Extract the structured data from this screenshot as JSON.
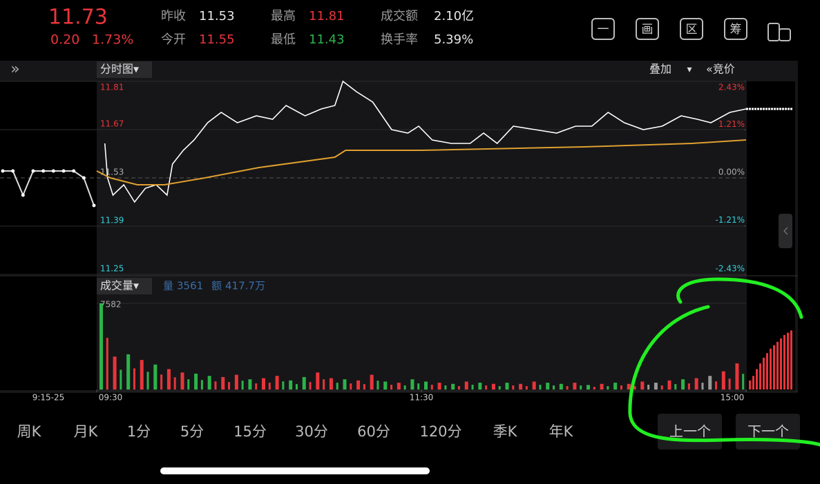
{
  "header": {
    "price": "11.73",
    "change": "0.20",
    "change_pct": "1.73%",
    "stats": [
      {
        "label": "昨收",
        "value": "11.53",
        "color": "#e8e8e8"
      },
      {
        "label": "今开",
        "value": "11.55",
        "color": "#e8353b"
      },
      {
        "label": "最高",
        "value": "11.81",
        "color": "#e8353b"
      },
      {
        "label": "最低",
        "value": "11.43",
        "color": "#2db34a"
      },
      {
        "label": "成交额",
        "value": "2.10亿",
        "color": "#e8e8e8"
      },
      {
        "label": "换手率",
        "value": "5.39%",
        "color": "#e8e8e8"
      }
    ],
    "icons": [
      "一",
      "画",
      "区",
      "筹"
    ]
  },
  "toolbar": {
    "expand": "»",
    "mode": "分时图▾",
    "overlay": "叠加",
    "overlay_arrow": "▾",
    "auction": "«竞价"
  },
  "chart_data": {
    "type": "line",
    "auction_label": "9:15-25",
    "xlim": [
      0,
      240
    ],
    "xticks": [
      {
        "value": 0,
        "label": "09:30"
      },
      {
        "value": 120,
        "label": "11:30"
      },
      {
        "value": 240,
        "label": "15:00"
      }
    ],
    "ylim": [
      11.25,
      11.81
    ],
    "yticks": [
      11.81,
      11.67,
      11.53,
      11.39,
      11.25
    ],
    "y2lim": [
      -2.43,
      2.43
    ],
    "y2ticks": [
      {
        "value": 2.43,
        "label": "2.43%"
      },
      {
        "value": 1.21,
        "label": "1.21%"
      },
      {
        "value": 0,
        "label": "0.00%"
      },
      {
        "value": -1.21,
        "label": "-1.21%"
      },
      {
        "value": -2.43,
        "label": "-2.43%"
      }
    ],
    "x": [
      3,
      4,
      6,
      10,
      14,
      18,
      22,
      26,
      28,
      32,
      36,
      41,
      46,
      52,
      59,
      65,
      70,
      77,
      83,
      88,
      91,
      96,
      102,
      109,
      115,
      119,
      124,
      131,
      138,
      143,
      148,
      154,
      162,
      170,
      177,
      183,
      189,
      195,
      202,
      209,
      216,
      222,
      227,
      234,
      240
    ],
    "series": [
      {
        "color": "#ffffff",
        "values": [
          11.63,
          11.53,
          11.48,
          11.51,
          11.46,
          11.5,
          11.51,
          11.48,
          11.57,
          11.61,
          11.64,
          11.69,
          11.72,
          11.69,
          11.71,
          11.7,
          11.74,
          11.71,
          11.73,
          11.74,
          11.81,
          11.78,
          11.75,
          11.67,
          11.66,
          11.68,
          11.64,
          11.63,
          11.63,
          11.66,
          11.63,
          11.68,
          11.67,
          11.66,
          11.68,
          11.68,
          11.72,
          11.69,
          11.67,
          11.68,
          11.71,
          11.7,
          11.69,
          11.72,
          11.73
        ]
      },
      {
        "color": "#e0a030",
        "x": [
          0,
          5,
          15,
          25,
          40,
          60,
          88,
          92,
          120,
          180,
          220,
          240
        ],
        "values": [
          11.55,
          11.53,
          11.51,
          11.51,
          11.53,
          11.56,
          11.59,
          11.61,
          11.61,
          11.62,
          11.63,
          11.64
        ]
      }
    ],
    "auction_values": [
      11.55,
      11.55,
      11.48,
      11.55,
      11.55,
      11.55,
      11.55,
      11.55,
      11.53,
      11.45
    ],
    "volume": {
      "title": "成交量▾",
      "vol_label": "量",
      "vol": "3561",
      "amount_label": "额",
      "amount": "417.7万",
      "ylim": [
        0,
        7582
      ],
      "yticks": [
        7582
      ],
      "values": [
        7582,
        2900,
        3100,
        2600,
        2200,
        1800,
        1500,
        1400,
        1200,
        1100,
        1300,
        900,
        1000,
        1200,
        800,
        1100,
        1500,
        1000,
        900,
        800,
        1300,
        700,
        600,
        900,
        700,
        600,
        500,
        700,
        600,
        500,
        600,
        500,
        700,
        600,
        500,
        600,
        400,
        500,
        600,
        500,
        700,
        600,
        800,
        900,
        1000,
        1200,
        1600,
        2300
      ],
      "colors": [
        "#2db34a",
        "#e8353b",
        "#2db34a",
        "#e8353b",
        "#2db34a",
        "#e8353b",
        "#e8353b",
        "#2db34a",
        "#2db34a",
        "#e8353b",
        "#e8353b",
        "#2db34a",
        "#e8353b",
        "#e8353b",
        "#2db34a",
        "#2db34a",
        "#e8353b",
        "#e8353b",
        "#2db34a",
        "#e8353b",
        "#e8353b",
        "#2db34a",
        "#e8353b",
        "#2db34a",
        "#2db34a",
        "#e8353b",
        "#2db34a",
        "#e8353b",
        "#2db34a",
        "#e8353b",
        "#2db34a",
        "#e8353b",
        "#e8353b",
        "#2db34a",
        "#2db34a",
        "#e8353b",
        "#2db34a",
        "#e8353b",
        "#2db34a",
        "#e8353b",
        "#e8353b",
        "#999999",
        "#e8353b",
        "#2db34a",
        "#e8353b",
        "#999999",
        "#e8353b",
        "#e8353b"
      ],
      "post_values": [
        800,
        1200,
        1800,
        2300,
        2800,
        3200,
        3600,
        3900,
        4200,
        4500,
        4800,
        5000,
        5200
      ],
      "post_color": "#e8353b"
    }
  },
  "tabs": [
    "周K",
    "月K",
    "1分",
    "5分",
    "15分",
    "30分",
    "60分",
    "120分",
    "季K",
    "年K"
  ],
  "buttons": [
    "上一个",
    "下一个"
  ]
}
